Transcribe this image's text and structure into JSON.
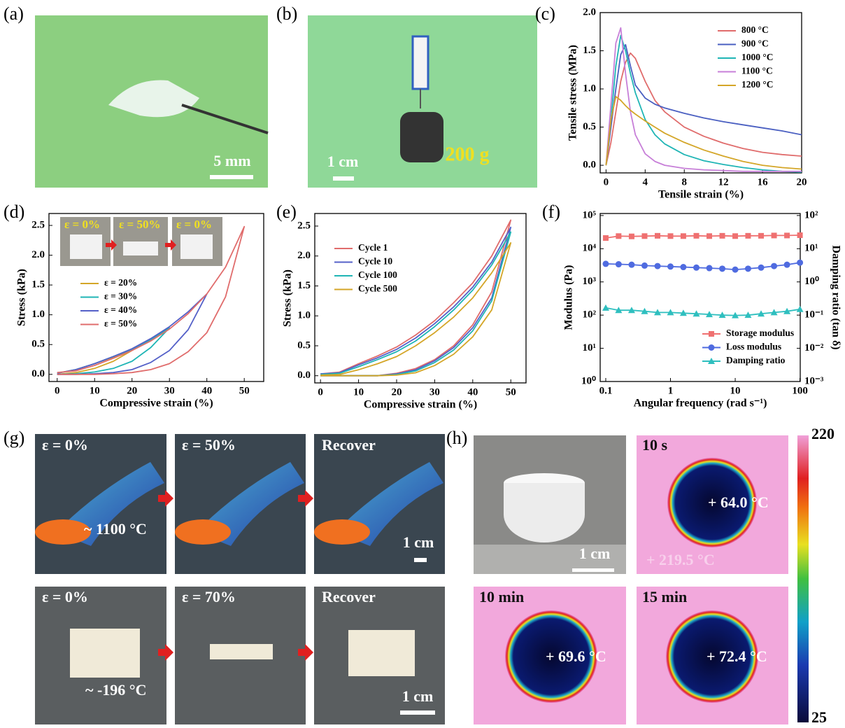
{
  "panels": [
    "(a)",
    "(b)",
    "(c)",
    "(d)",
    "(e)",
    "(f)",
    "(g)",
    "(h)"
  ],
  "photos": {
    "a": {
      "scale": "5 mm"
    },
    "b": {
      "scale": "1 cm",
      "mass": "200 g"
    },
    "g": {
      "top": [
        "ε = 0%",
        "ε = 50%",
        "Recover"
      ],
      "top_temp": "~ 1100 °C",
      "top_scale": "1 cm",
      "bottom": [
        "ε = 0%",
        "ε = 70%",
        "Recover"
      ],
      "bottom_temp": "~ -196 °C",
      "bottom_scale": "1 cm"
    },
    "h": {
      "scale": "1 cm",
      "times": [
        "10 s",
        "10 min",
        "15 min"
      ],
      "readings": [
        "+ 64.0 °C",
        "+ 69.6 °C",
        "+ 72.4 °C"
      ],
      "background": "+ 219.5 °C",
      "colorbar": {
        "max": 220,
        "min": 25
      }
    }
  },
  "chart_data": [
    {
      "type": "line",
      "xlabel": "Tensile strain (%)",
      "ylabel": "Tensile stress (MPa)",
      "x": [
        0,
        0.5,
        1,
        1.5,
        2,
        2.5,
        3,
        4,
        5,
        6,
        8,
        10,
        12,
        14,
        16,
        18,
        20
      ],
      "xlim": [
        -0.6,
        20
      ],
      "xticks": [
        0,
        4,
        8,
        12,
        16,
        20
      ],
      "ylim": [
        -0.1,
        2.0
      ],
      "yticks": [
        {
          "value": 0,
          "label": "0.0"
        },
        {
          "value": 0.5,
          "label": "0.5"
        },
        {
          "value": 1,
          "label": "1.0"
        },
        {
          "value": 1.5,
          "label": "1.5"
        },
        {
          "value": 2,
          "label": "2.0"
        }
      ],
      "legend": "upper right",
      "series": [
        {
          "name": "800 °C",
          "color": "#e06c6c",
          "values": [
            0,
            0.3,
            0.7,
            1.1,
            1.35,
            1.47,
            1.4,
            1.1,
            0.85,
            0.7,
            0.5,
            0.38,
            0.29,
            0.22,
            0.17,
            0.14,
            0.12
          ]
        },
        {
          "name": "900 °C",
          "color": "#4a5fc1",
          "values": [
            0,
            0.5,
            1.0,
            1.45,
            1.58,
            1.3,
            1.05,
            0.88,
            0.8,
            0.75,
            0.68,
            0.62,
            0.57,
            0.53,
            0.49,
            0.45,
            0.4
          ]
        },
        {
          "name": "1000 °C",
          "color": "#1fb5b5",
          "values": [
            0,
            0.6,
            1.3,
            1.7,
            1.5,
            1.2,
            0.95,
            0.6,
            0.4,
            0.28,
            0.14,
            0.06,
            0.01,
            -0.03,
            -0.06,
            -0.08,
            -0.09
          ]
        },
        {
          "name": "1100 °C",
          "color": "#c77fd8",
          "values": [
            0,
            0.8,
            1.6,
            1.8,
            1.2,
            0.7,
            0.4,
            0.15,
            0.05,
            0,
            -0.04,
            -0.06,
            -0.07,
            -0.08,
            -0.08,
            -0.08,
            -0.08
          ]
        },
        {
          "name": "1200 °C",
          "color": "#d4a628",
          "values": [
            0,
            0.6,
            0.9,
            0.85,
            0.78,
            0.72,
            0.67,
            0.58,
            0.5,
            0.42,
            0.3,
            0.2,
            0.12,
            0.05,
            0,
            -0.03,
            -0.05
          ]
        }
      ]
    },
    {
      "type": "line",
      "xlabel": "Compressive strain (%)",
      "ylabel": "Stress (kPa)",
      "inset_labels": [
        "ε = 0%",
        "ε = 50%",
        "ε = 0%"
      ],
      "xlim": [
        -2.2,
        55.2
      ],
      "xticks": [
        0,
        10,
        20,
        30,
        40,
        50
      ],
      "ylim": [
        -0.12,
        2.7
      ],
      "yticks": [
        {
          "value": 0,
          "label": "0.0"
        },
        {
          "value": 0.5,
          "label": "0.5"
        },
        {
          "value": 1,
          "label": "1.0"
        },
        {
          "value": 1.5,
          "label": "1.5"
        },
        {
          "value": 2,
          "label": "2.0"
        },
        {
          "value": 2.5,
          "label": "2.5"
        }
      ],
      "legend": "center left",
      "series": [
        {
          "name": "ε = 20%",
          "color": "#d4a628",
          "x": [
            0,
            5,
            10,
            15,
            20,
            15,
            10,
            5,
            0
          ],
          "values": [
            0.02,
            0.08,
            0.18,
            0.29,
            0.4,
            0.22,
            0.1,
            0.03,
            0
          ]
        },
        {
          "name": "ε = 30%",
          "color": "#1fb5b5",
          "x": [
            0,
            5,
            10,
            15,
            20,
            25,
            30,
            25,
            20,
            15,
            10,
            5,
            0
          ],
          "values": [
            0.02,
            0.08,
            0.18,
            0.3,
            0.42,
            0.58,
            0.78,
            0.45,
            0.22,
            0.1,
            0.04,
            0.01,
            0
          ]
        },
        {
          "name": "ε = 40%",
          "color": "#5460c8",
          "x": [
            0,
            5,
            10,
            15,
            20,
            25,
            30,
            35,
            40,
            35,
            30,
            25,
            20,
            15,
            10,
            5,
            0
          ],
          "values": [
            0.02,
            0.08,
            0.18,
            0.3,
            0.43,
            0.6,
            0.8,
            1.05,
            1.35,
            0.75,
            0.4,
            0.2,
            0.08,
            0.03,
            0.01,
            0,
            0
          ]
        },
        {
          "name": "ε = 50%",
          "color": "#e06c6c",
          "x": [
            0,
            5,
            10,
            15,
            20,
            25,
            30,
            35,
            40,
            45,
            50,
            45,
            40,
            35,
            30,
            25,
            20,
            15,
            10,
            5,
            0
          ],
          "values": [
            0.03,
            0.06,
            0.15,
            0.27,
            0.4,
            0.56,
            0.76,
            1.02,
            1.35,
            1.8,
            2.48,
            1.3,
            0.7,
            0.38,
            0.18,
            0.08,
            0.03,
            0.01,
            0,
            0,
            0
          ]
        }
      ]
    },
    {
      "type": "line",
      "xlabel": "Compressive strain (%)",
      "ylabel": "Stress (kPa)",
      "xlim": [
        -1.5,
        54
      ],
      "xticks": [
        0,
        10,
        20,
        30,
        40,
        50
      ],
      "ylim": [
        -0.12,
        2.71
      ],
      "yticks": [
        {
          "value": 0,
          "label": "0.0"
        },
        {
          "value": 0.5,
          "label": "0.5"
        },
        {
          "value": 1,
          "label": "1.0"
        },
        {
          "value": 1.5,
          "label": "1.5"
        },
        {
          "value": 2,
          "label": "2.0"
        },
        {
          "value": 2.5,
          "label": "2.5"
        }
      ],
      "legend": "upper left",
      "series": [
        {
          "name": "Cycle 1",
          "color": "#e06c6c",
          "x": [
            0,
            5,
            10,
            15,
            20,
            25,
            30,
            35,
            40,
            45,
            50,
            45,
            40,
            35,
            30,
            25,
            20,
            15,
            10,
            5,
            0
          ],
          "values": [
            0.03,
            0.06,
            0.2,
            0.33,
            0.48,
            0.68,
            0.92,
            1.22,
            1.55,
            2.0,
            2.6,
            1.4,
            0.85,
            0.5,
            0.27,
            0.12,
            0.04,
            0,
            0,
            0,
            0
          ]
        },
        {
          "name": "Cycle 10",
          "color": "#5460c8",
          "x": [
            0,
            5,
            10,
            15,
            20,
            25,
            30,
            35,
            40,
            45,
            50,
            45,
            40,
            35,
            30,
            25,
            20,
            15,
            10,
            5,
            0
          ],
          "values": [
            0.03,
            0.05,
            0.18,
            0.3,
            0.44,
            0.63,
            0.87,
            1.15,
            1.48,
            1.9,
            2.48,
            1.3,
            0.8,
            0.47,
            0.25,
            0.1,
            0.03,
            0,
            0,
            0,
            0
          ]
        },
        {
          "name": "Cycle 100",
          "color": "#1fb5b5",
          "x": [
            0,
            5,
            10,
            15,
            20,
            25,
            30,
            35,
            40,
            45,
            50,
            45,
            40,
            35,
            30,
            25,
            20,
            15,
            10,
            5,
            0
          ],
          "values": [
            0.02,
            0.04,
            0.15,
            0.27,
            0.4,
            0.58,
            0.82,
            1.1,
            1.43,
            1.85,
            2.4,
            1.25,
            0.75,
            0.43,
            0.22,
            0.08,
            0.02,
            0,
            0,
            0,
            0
          ]
        },
        {
          "name": "Cycle 500",
          "color": "#d4a628",
          "x": [
            0,
            5,
            10,
            15,
            20,
            25,
            30,
            35,
            40,
            45,
            50,
            45,
            40,
            35,
            30,
            25,
            20,
            15,
            10,
            5,
            0
          ],
          "values": [
            0.01,
            0.02,
            0.1,
            0.2,
            0.32,
            0.5,
            0.72,
            0.98,
            1.3,
            1.72,
            2.22,
            1.1,
            0.65,
            0.36,
            0.17,
            0.05,
            0.01,
            0,
            0,
            0,
            0
          ]
        }
      ]
    },
    {
      "type": "line",
      "xlabel": "Angular frequency (rad s⁻¹)",
      "ylabel": "Modulus (Pa)",
      "y2label": "Damping ratio (tan δ)",
      "xscale": "log",
      "yscale": "log",
      "y2scale": "log",
      "x": [
        0.1,
        0.158,
        0.251,
        0.398,
        0.631,
        1,
        1.58,
        2.51,
        3.98,
        6.31,
        10,
        15.8,
        25.1,
        39.8,
        63.1,
        100
      ],
      "xlim": [
        0.082,
        101
      ],
      "xticks": [
        0.1,
        1,
        10,
        100
      ],
      "ylim": [
        1,
        115000
      ],
      "yticks": [
        {
          "value": 1,
          "label": "10⁰"
        },
        {
          "value": 10,
          "label": "10¹"
        },
        {
          "value": 100,
          "label": "10²"
        },
        {
          "value": 1000,
          "label": "10³"
        },
        {
          "value": 10000,
          "label": "10⁴"
        },
        {
          "value": 100000,
          "label": "10⁵"
        }
      ],
      "y2lim": [
        0.001,
        115
      ],
      "y2ticks": [
        {
          "value": 0.001,
          "label": "10⁻³"
        },
        {
          "value": 0.01,
          "label": "10⁻²"
        },
        {
          "value": 0.1,
          "label": "10⁻¹"
        },
        {
          "value": 1,
          "label": "10⁰"
        },
        {
          "value": 10,
          "label": "10¹"
        },
        {
          "value": 100,
          "label": "10²"
        }
      ],
      "legend": "lower right",
      "series": [
        {
          "name": "Storage modulus",
          "color": "#ef7070",
          "marker": "square",
          "values": [
            21000,
            24000,
            23500,
            24000,
            24500,
            24000,
            24000,
            24500,
            24000,
            24500,
            24000,
            24500,
            24500,
            25000,
            25000,
            25500
          ]
        },
        {
          "name": "Loss modulus",
          "color": "#4f6be0",
          "marker": "circle",
          "values": [
            3500,
            3400,
            3300,
            3100,
            3000,
            2900,
            2800,
            2700,
            2600,
            2500,
            2350,
            2500,
            2700,
            3000,
            3300,
            3800
          ]
        },
        {
          "name": "Damping ratio",
          "color": "#2fbfbf",
          "marker": "triangle",
          "axis": "y2",
          "values": [
            0.165,
            0.14,
            0.14,
            0.13,
            0.12,
            0.12,
            0.115,
            0.11,
            0.105,
            0.1,
            0.098,
            0.1,
            0.11,
            0.12,
            0.13,
            0.15
          ]
        }
      ]
    }
  ]
}
